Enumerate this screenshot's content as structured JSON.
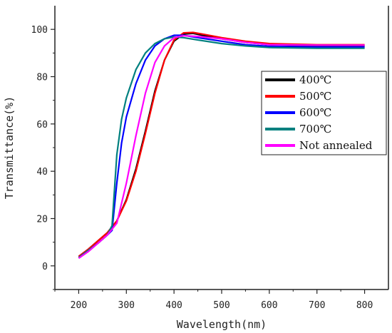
{
  "chart_data": {
    "type": "line",
    "xlabel": "Wavelength(nm)",
    "ylabel": "Transmittance(%)",
    "xlim": [
      150,
      850
    ],
    "ylim": [
      -10,
      110
    ],
    "x_ticks": [
      200,
      300,
      400,
      500,
      600,
      700,
      800
    ],
    "y_ticks": [
      0,
      20,
      40,
      60,
      80,
      100
    ],
    "legend_position": "center-right",
    "series": [
      {
        "name": "400℃",
        "color": "#000000",
        "points": [
          [
            200,
            4
          ],
          [
            220,
            7
          ],
          [
            240,
            10.5
          ],
          [
            260,
            14
          ],
          [
            280,
            19
          ],
          [
            300,
            28
          ],
          [
            320,
            41
          ],
          [
            340,
            57
          ],
          [
            360,
            74
          ],
          [
            380,
            87
          ],
          [
            400,
            95
          ],
          [
            420,
            98
          ],
          [
            440,
            98.3
          ],
          [
            460,
            97.5
          ],
          [
            500,
            96
          ],
          [
            550,
            94.5
          ],
          [
            600,
            93.5
          ],
          [
            700,
            93
          ],
          [
            800,
            93
          ]
        ]
      },
      {
        "name": "500℃",
        "color": "#ff0000",
        "points": [
          [
            200,
            4
          ],
          [
            220,
            7
          ],
          [
            240,
            10.5
          ],
          [
            260,
            14
          ],
          [
            280,
            19
          ],
          [
            300,
            27.5
          ],
          [
            320,
            40
          ],
          [
            340,
            56
          ],
          [
            360,
            73
          ],
          [
            380,
            87
          ],
          [
            400,
            95.5
          ],
          [
            420,
            98.5
          ],
          [
            440,
            98.7
          ],
          [
            460,
            98
          ],
          [
            500,
            96.5
          ],
          [
            550,
            95
          ],
          [
            600,
            94
          ],
          [
            700,
            93.5
          ],
          [
            800,
            93.5
          ]
        ]
      },
      {
        "name": "600℃",
        "color": "#0000ff",
        "points": [
          [
            200,
            3.5
          ],
          [
            220,
            6.5
          ],
          [
            240,
            9.5
          ],
          [
            260,
            13
          ],
          [
            270,
            15
          ],
          [
            280,
            35
          ],
          [
            290,
            52
          ],
          [
            300,
            63
          ],
          [
            320,
            77
          ],
          [
            340,
            87
          ],
          [
            360,
            93
          ],
          [
            380,
            96
          ],
          [
            400,
            97.5
          ],
          [
            420,
            97.5
          ],
          [
            450,
            96.5
          ],
          [
            500,
            95
          ],
          [
            550,
            93.5
          ],
          [
            600,
            92.8
          ],
          [
            700,
            92.5
          ],
          [
            800,
            92.5
          ]
        ]
      },
      {
        "name": "700℃",
        "color": "#00807f",
        "points": [
          [
            200,
            3.5
          ],
          [
            220,
            6.5
          ],
          [
            240,
            9.5
          ],
          [
            260,
            13
          ],
          [
            270,
            17
          ],
          [
            280,
            47
          ],
          [
            290,
            62
          ],
          [
            300,
            71
          ],
          [
            320,
            83
          ],
          [
            340,
            90
          ],
          [
            360,
            94
          ],
          [
            380,
            96
          ],
          [
            400,
            96.8
          ],
          [
            420,
            96.5
          ],
          [
            450,
            95.5
          ],
          [
            500,
            94
          ],
          [
            550,
            93
          ],
          [
            600,
            92.3
          ],
          [
            700,
            92
          ],
          [
            800,
            92
          ]
        ]
      },
      {
        "name": "Not annealed",
        "color": "#ff00ff",
        "points": [
          [
            200,
            3.2
          ],
          [
            220,
            6
          ],
          [
            240,
            9.5
          ],
          [
            260,
            13
          ],
          [
            280,
            18
          ],
          [
            300,
            35
          ],
          [
            320,
            55
          ],
          [
            340,
            73
          ],
          [
            360,
            86
          ],
          [
            380,
            93
          ],
          [
            400,
            96.5
          ],
          [
            420,
            97.3
          ],
          [
            450,
            97
          ],
          [
            500,
            96
          ],
          [
            550,
            94.5
          ],
          [
            600,
            93.5
          ],
          [
            700,
            93.3
          ],
          [
            800,
            93.3
          ]
        ]
      }
    ]
  }
}
